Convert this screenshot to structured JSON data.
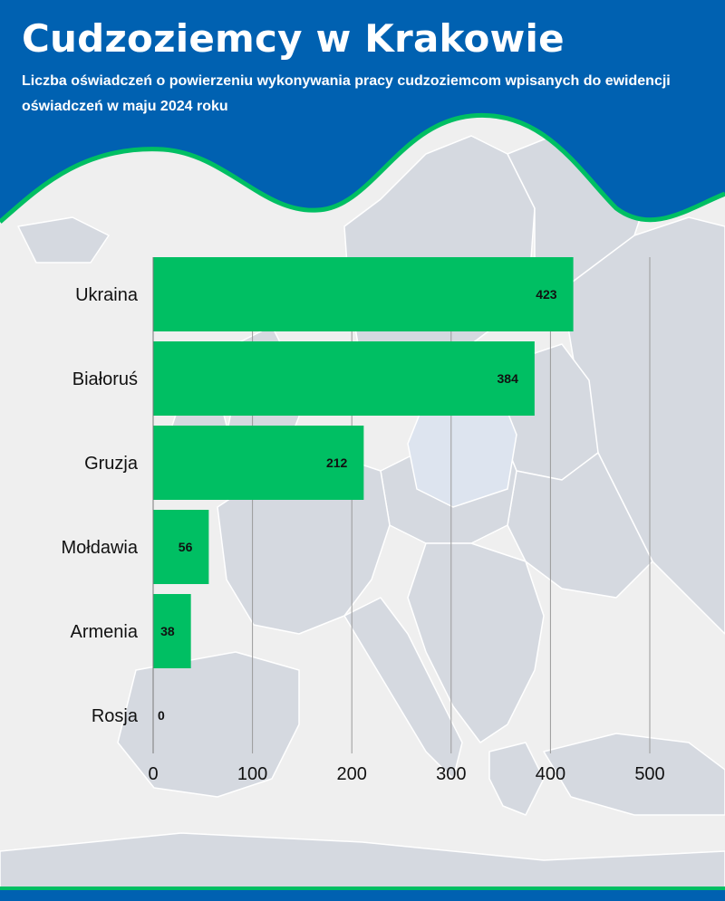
{
  "header": {
    "title": "Cudzoziemcy w Krakowie",
    "subtitle": "Liczba oświadczeń o powierzeniu wykonywania pracy cudzoziemcom wpisanych do ewidencji oświadczeń w maju 2024 roku"
  },
  "colors": {
    "header": "#0061b1",
    "accent": "#00bf63",
    "bar": "#00bf63",
    "background": "#efefef",
    "map_land": "#d5d9e0",
    "map_light": "#dde4ef",
    "grid": "#9a9a9a"
  },
  "chart_data": {
    "type": "bar",
    "orientation": "horizontal",
    "categories": [
      "Ukraina",
      "Białoruś",
      "Gruzja",
      "Mołdawia",
      "Armenia",
      "Rosja"
    ],
    "values": [
      423,
      384,
      212,
      56,
      38,
      0
    ],
    "xlim": [
      0,
      500
    ],
    "xticks": [
      0,
      100,
      200,
      300,
      400,
      500
    ],
    "grid": true,
    "data_labels": true
  }
}
